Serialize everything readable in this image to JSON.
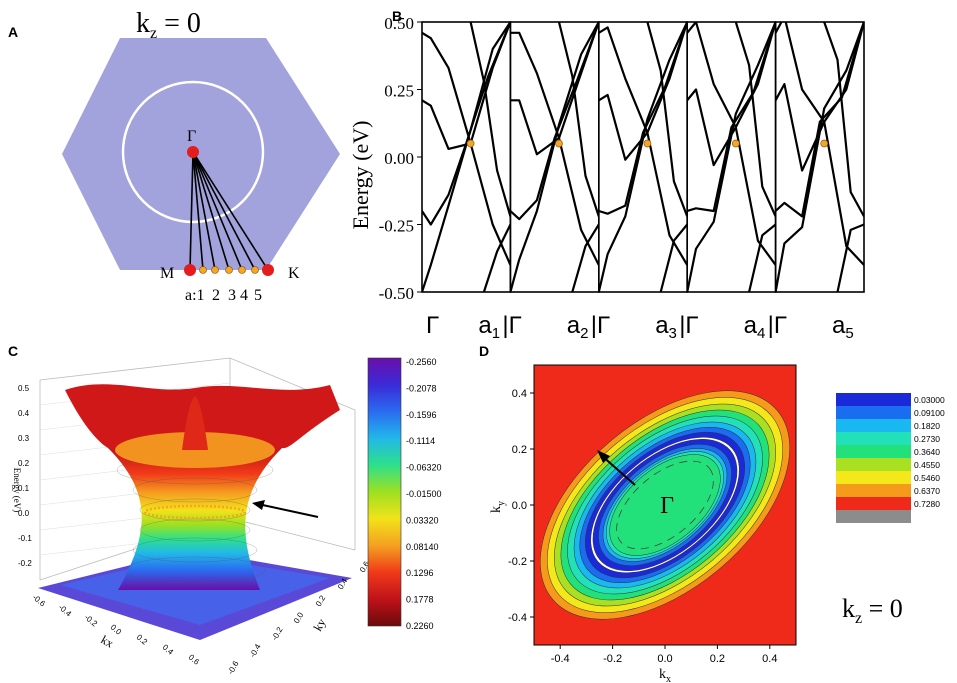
{
  "panel_labels": {
    "a": "A",
    "b": "B",
    "c": "C",
    "d": "D"
  },
  "panel_a": {
    "title_k": "k",
    "title_sub": "z",
    "title_eq": " = 0",
    "gamma_label": "Γ",
    "m_label": "M",
    "k_label": "K",
    "path_labels": [
      "a:1",
      "2",
      "3",
      "4",
      "5"
    ],
    "colors": {
      "hexagon": "#a2a2dc",
      "circle": "#ffffff",
      "high_symmetry": "#e41c1c",
      "path_point": "#f5a623"
    }
  },
  "chart_data": [
    {
      "type": "line",
      "title": "",
      "ylabel": "Energy (eV)",
      "ylim": [
        -0.5,
        0.5
      ],
      "yticks": [
        "0.50",
        "0.25",
        "0.00",
        "-0.25",
        "-0.50"
      ],
      "subplots": [
        "a1",
        "a2",
        "a3",
        "a4",
        "a5"
      ],
      "xtick_start": "Γ",
      "xtick_end_base": "a",
      "xtick_end_subs": [
        "1",
        "2",
        "3",
        "4",
        "5"
      ],
      "crossing_energy": 0.05,
      "crossing_k": 0.55,
      "bands": [
        {
          "name": "band-1",
          "x": [
            0,
            0.1,
            0.3,
            0.55,
            0.8,
            1.0
          ],
          "y": [
            0.46,
            0.44,
            0.33,
            0.05,
            -0.25,
            -0.4
          ]
        },
        {
          "name": "band-2",
          "x": [
            0,
            0.1,
            0.3,
            0.55,
            0.8,
            1.0
          ],
          "y": [
            0.21,
            0.19,
            0.03,
            0.05,
            0.33,
            0.5
          ]
        },
        {
          "name": "band-3",
          "x": [
            0,
            0.1,
            0.3,
            0.5,
            0.75,
            1.0
          ],
          "y": [
            -0.2,
            -0.25,
            -0.14,
            0.05,
            0.3,
            0.5
          ]
        },
        {
          "name": "band-4",
          "x": [
            0,
            0.1,
            0.3,
            0.55,
            0.8,
            1.0
          ],
          "y": [
            -0.5,
            -0.4,
            -0.18,
            0.1,
            0.4,
            0.5
          ]
        },
        {
          "name": "band-5",
          "x": [
            0.55,
            0.7,
            0.85,
            1.0
          ],
          "y": [
            0.5,
            0.28,
            -0.05,
            -0.22
          ]
        },
        {
          "name": "band-6",
          "x": [
            0.7,
            0.85,
            1.0
          ],
          "y": [
            -0.5,
            -0.35,
            -0.25
          ]
        }
      ],
      "subplot_shift": [
        0,
        0.02,
        0.04,
        0.06,
        0.08
      ]
    },
    {
      "type": "surface3d",
      "title": "",
      "zlabel": "Energy (eV)",
      "xlabel": "kx",
      "ylabel": "ky",
      "zticks": [
        "0.5",
        "0.4",
        "0.3",
        "0.2",
        "0.1",
        "0.0",
        "-0.1",
        "-0.2"
      ],
      "xticks": [
        "-0.6",
        "-0.4",
        "-0.2",
        "0.0",
        "0.2",
        "0.4",
        "0.6"
      ],
      "yticks": [
        "-0.6",
        "-0.4",
        "-0.2",
        "0.0",
        "0.2",
        "0.4",
        "0.6"
      ],
      "colorbar": [
        "-0.2560",
        "-0.2078",
        "-0.1596",
        "-0.1114",
        "-0.06320",
        "-0.01500",
        "0.03320",
        "0.08140",
        "0.1296",
        "0.1778",
        "0.2260"
      ],
      "colorbar_colors": [
        "#6a0fa8",
        "#3a2ad8",
        "#2a6cf0",
        "#22b8e8",
        "#2ee08a",
        "#9ee021",
        "#f2e21a",
        "#f5a020",
        "#f03a18",
        "#c0121a",
        "#6a0a0a"
      ]
    },
    {
      "type": "heatmap",
      "title": "",
      "xlabel_base": "k",
      "xlabel_sub": "x",
      "ylabel_base": "k",
      "ylabel_sub": "y",
      "xlim": [
        -0.5,
        0.5
      ],
      "ylim": [
        -0.5,
        0.5
      ],
      "xticks": [
        "-0.4",
        "-0.2",
        "0.0",
        "0.2",
        "0.4"
      ],
      "yticks": [
        "0.4",
        "0.2",
        "0.0",
        "-0.2",
        "-0.4"
      ],
      "center_label": "Γ",
      "levels": [
        "0.03000",
        "0.09100",
        "0.1820",
        "0.2730",
        "0.3640",
        "0.4550",
        "0.5460",
        "0.6370",
        "0.7280"
      ],
      "level_colors": [
        "#1a2ad8",
        "#1a6cf0",
        "#1ab8f0",
        "#22e0b8",
        "#22e07a",
        "#aae022",
        "#f5e81a",
        "#f59a1a",
        "#f02a1a",
        "#8c8c8c"
      ],
      "kz_base": "k",
      "kz_sub": "z",
      "kz_eq": " = 0"
    }
  ]
}
